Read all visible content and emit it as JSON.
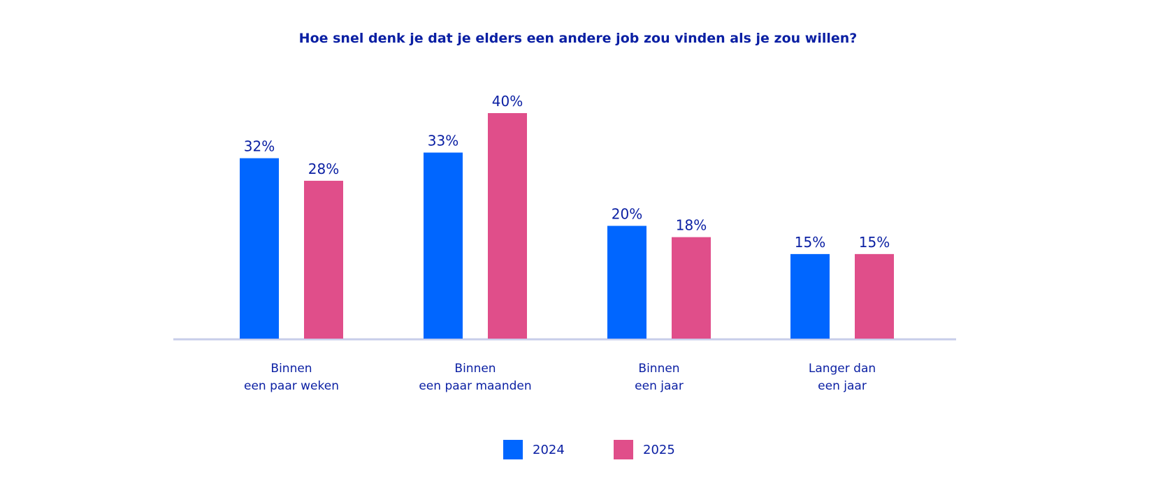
{
  "chart_data": {
    "type": "bar",
    "title": "Hoe snel denk je dat je elders een andere job zou vinden als je zou willen?",
    "categories": [
      [
        "Binnen",
        "een paar weken"
      ],
      [
        "Binnen",
        "een paar maanden"
      ],
      [
        "Binnen",
        "een jaar"
      ],
      [
        "Langer dan",
        "een jaar"
      ]
    ],
    "series": [
      {
        "name": "2024",
        "color": "#0066ff",
        "values": [
          32,
          33,
          20,
          15
        ],
        "labels": [
          "32%",
          "33%",
          "20%",
          "15%"
        ]
      },
      {
        "name": "2025",
        "color": "#e04e8a",
        "values": [
          28,
          40,
          18,
          15
        ],
        "labels": [
          "28%",
          "40%",
          "18%",
          "15%"
        ]
      }
    ],
    "ylim": [
      0,
      40
    ],
    "legend": "bottom-center",
    "colors": {
      "text": "#0a1fa3",
      "axis": "#c8cdea"
    }
  }
}
